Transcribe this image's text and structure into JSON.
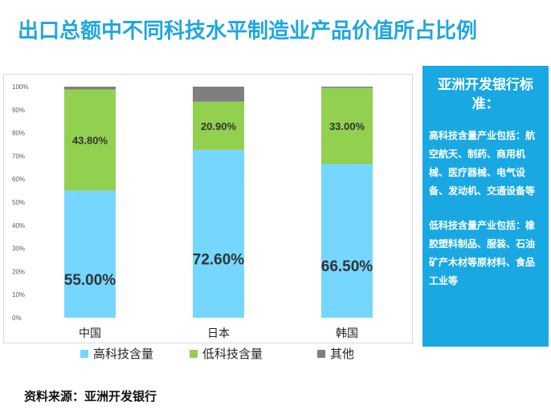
{
  "title": "出口总额中不同科技水平制造业产品价值所占比例",
  "side_panel": {
    "title": "亚洲开发银行标准：",
    "high_tech_text": "高科技含量产业包括：航空航天、制药、商用机械、医疗器械、电气设备、发动机、交通设备等",
    "low_tech_text": "低科技含量产业包括：橡胶塑料制品、服装、石油矿产木材等原材料、食品工业等"
  },
  "source": "资料来源：亚洲开发银行",
  "colors": {
    "high": "#75D7FF",
    "low": "#92D050",
    "other": "#7F7F7F",
    "accent": "#21A6E0",
    "panel": "#19A8E2"
  },
  "chart_data": {
    "type": "bar",
    "stacked": true,
    "categories": [
      "中国",
      "日本",
      "韩国"
    ],
    "ylim": [
      0,
      100
    ],
    "yticks": [
      "0%",
      "10%",
      "20%",
      "30%",
      "40%",
      "50%",
      "60%",
      "70%",
      "80%",
      "90%",
      "100%"
    ],
    "grid": false,
    "legend_position": "bottom",
    "series": [
      {
        "name": "高科技含量",
        "values": [
          55.0,
          72.6,
          66.5
        ],
        "labels": [
          "55.00%",
          "72.60%",
          "66.50%"
        ],
        "color": "#75D7FF"
      },
      {
        "name": "低科技含量",
        "values": [
          43.8,
          20.9,
          33.0
        ],
        "labels": [
          "43.80%",
          "20.90%",
          "33.00%"
        ],
        "color": "#92D050"
      },
      {
        "name": "其他",
        "values": [
          1.2,
          6.5,
          0.5
        ],
        "color": "#7F7F7F"
      }
    ]
  }
}
